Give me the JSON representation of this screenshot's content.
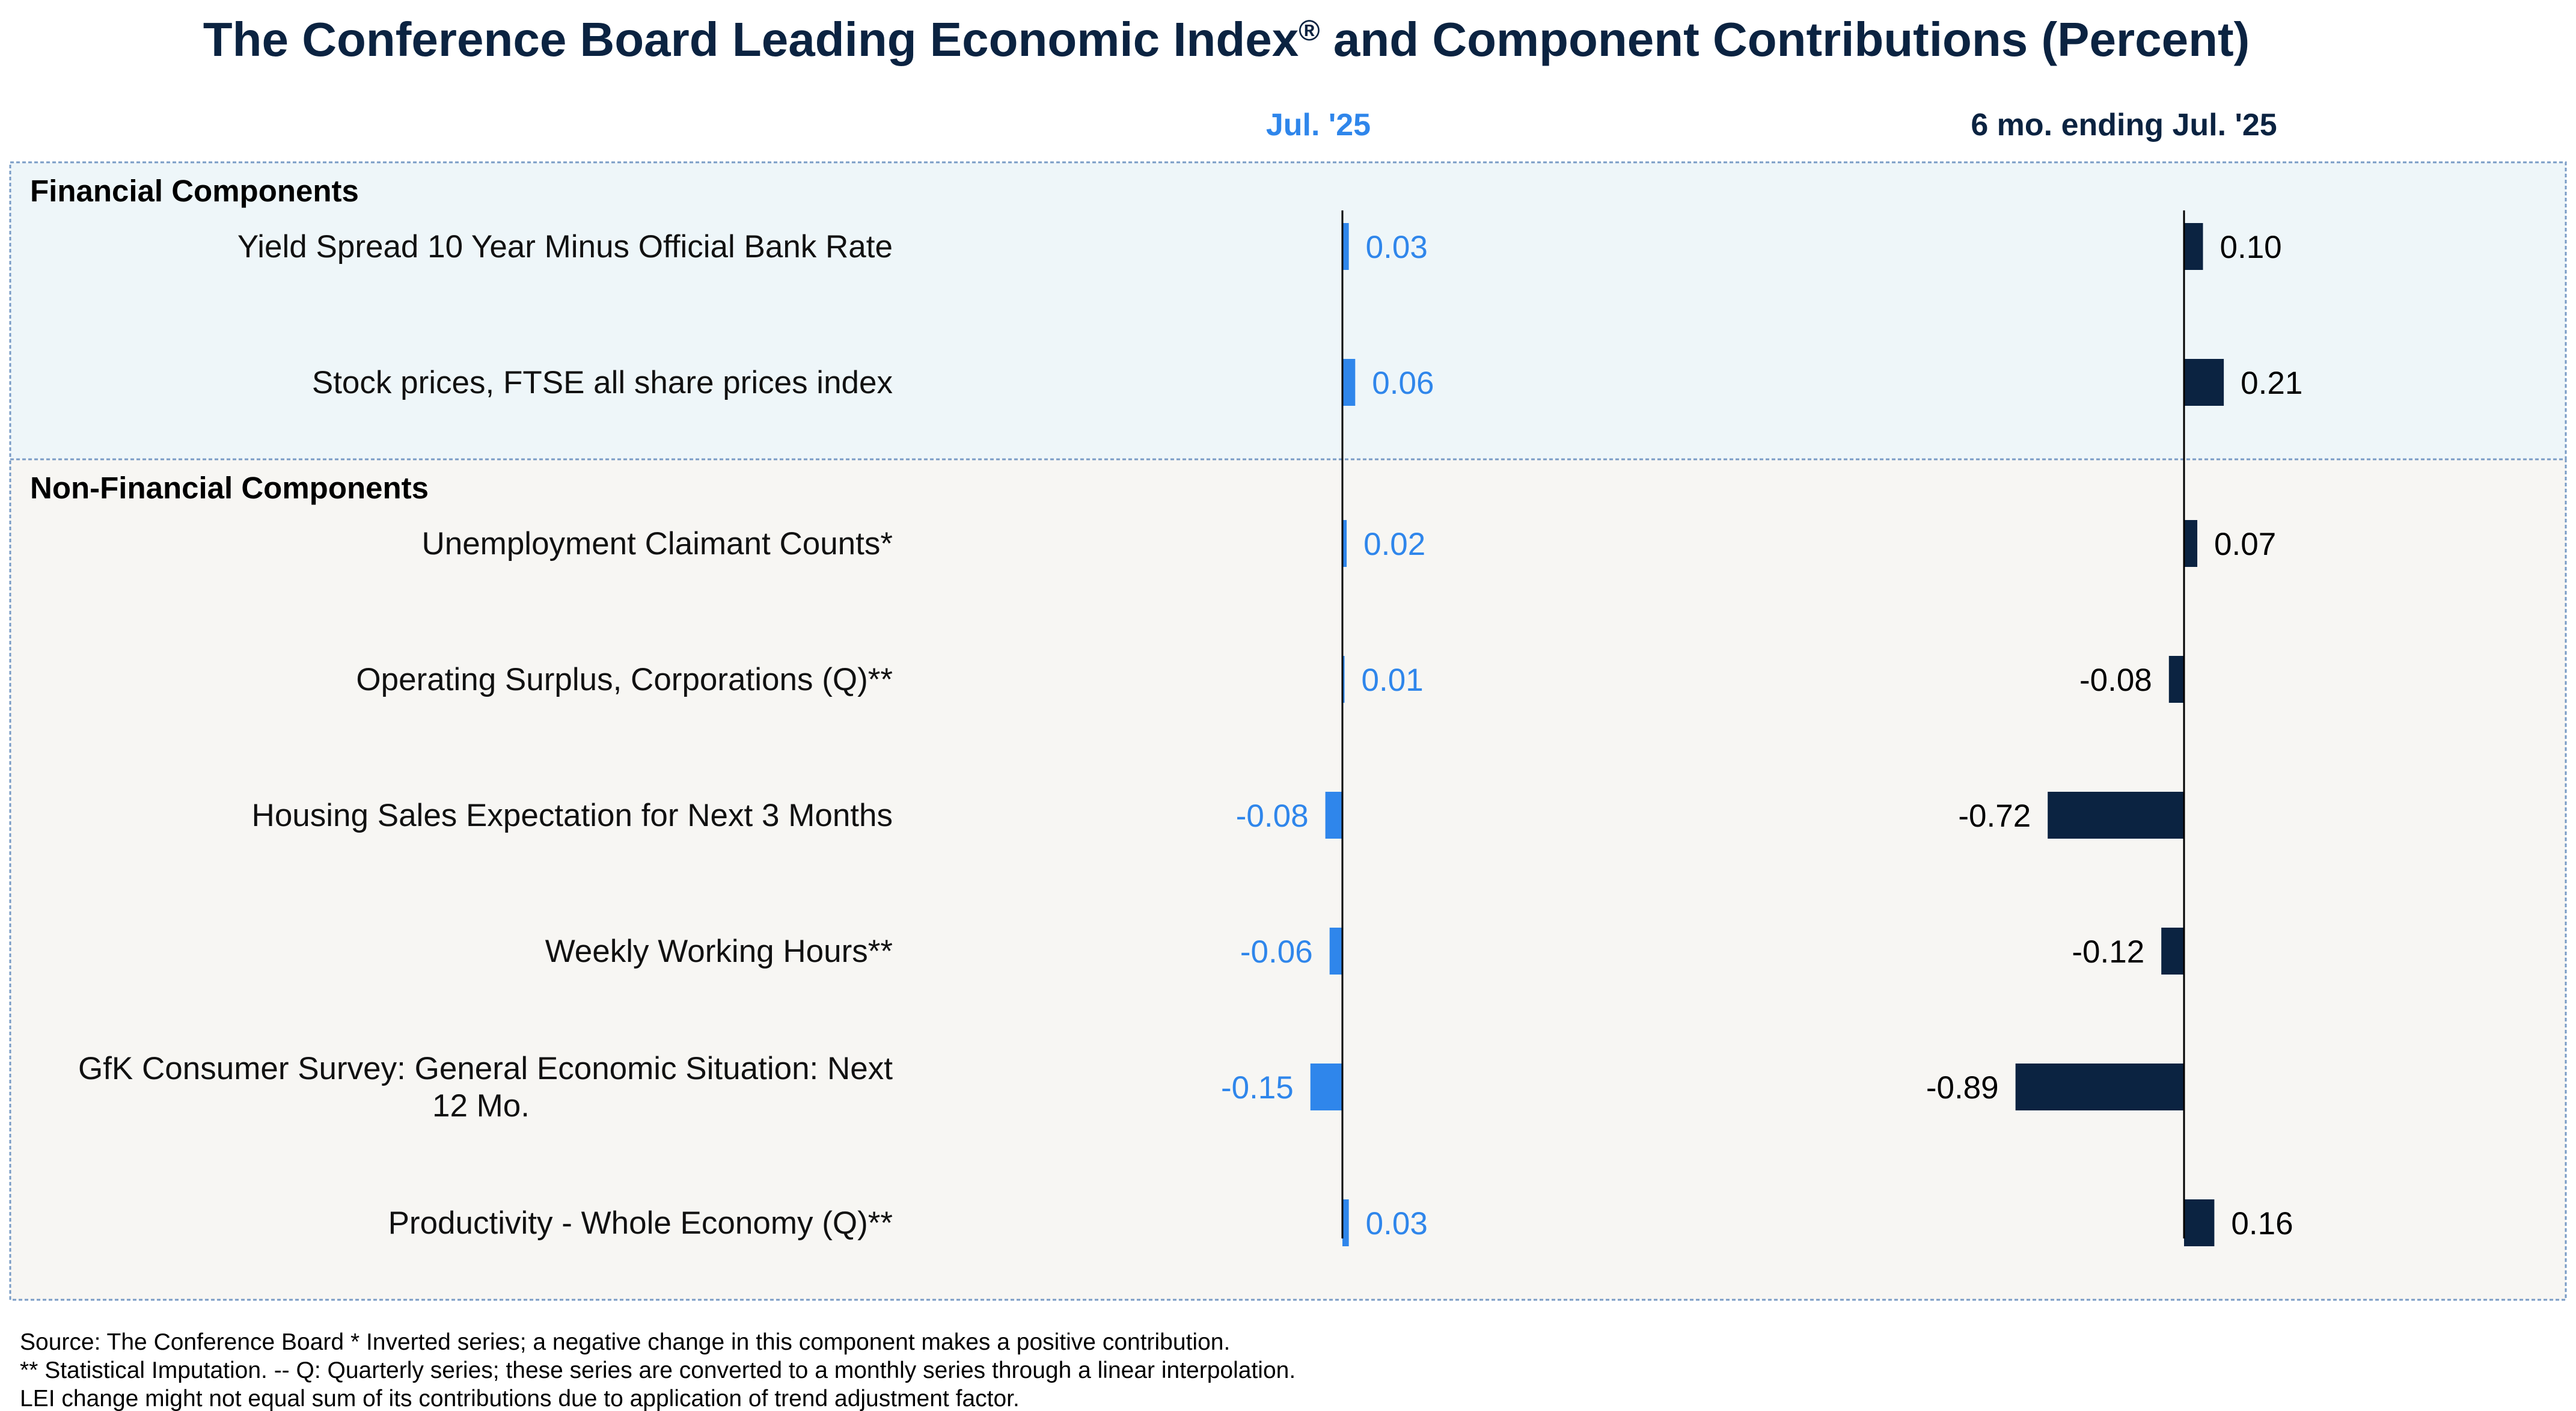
{
  "chart_data": {
    "type": "bar",
    "title": "The Conference Board Leading Economic Index",
    "title_mark": "®",
    "title_suffix": " and Component Contributions (Percent)",
    "orientation": "horizontal",
    "columns": [
      {
        "id": "month",
        "header": "Jul. '25",
        "color": "#2f86eb"
      },
      {
        "id": "six_month",
        "header": "6 mo. ending Jul. '25",
        "color": "#0b2341"
      }
    ],
    "sections": [
      {
        "name": "Financial Components",
        "background": "#eef6f9",
        "rows": [
          {
            "label": [
              "Yield Spread 10 Year Minus Official Bank Rate"
            ],
            "values": [
              0.03,
              0.1
            ],
            "display": [
              "0.03",
              "0.10"
            ]
          },
          {
            "label": [
              "Stock prices, FTSE all share prices index"
            ],
            "values": [
              0.06,
              0.21
            ],
            "display": [
              "0.06",
              "0.21"
            ]
          }
        ]
      },
      {
        "name": "Non-Financial Components",
        "background": "#f7f6f3",
        "rows": [
          {
            "label": [
              "Unemployment Claimant Counts*"
            ],
            "values": [
              0.02,
              0.07
            ],
            "display": [
              "0.02",
              "0.07"
            ]
          },
          {
            "label": [
              "Operating Surplus, Corporations (Q)**"
            ],
            "values": [
              0.01,
              -0.08
            ],
            "display": [
              "0.01",
              "-0.08"
            ]
          },
          {
            "label": [
              "Housing Sales Expectation for Next 3 Months"
            ],
            "values": [
              -0.08,
              -0.72
            ],
            "display": [
              "-0.08",
              "-0.72"
            ]
          },
          {
            "label": [
              "Weekly Working Hours**"
            ],
            "values": [
              -0.06,
              -0.12
            ],
            "display": [
              "-0.06",
              "-0.12"
            ]
          },
          {
            "label": [
              "GfK Consumer Survey: General Economic Situation: Next",
              "12 Mo."
            ],
            "values": [
              -0.15,
              -0.89
            ],
            "display": [
              "-0.15",
              "-0.89"
            ]
          },
          {
            "label": [
              "Productivity - Whole Economy (Q)**"
            ],
            "values": [
              0.03,
              0.16
            ],
            "display": [
              "0.03",
              "0.16"
            ]
          }
        ]
      }
    ],
    "footnotes": [
      "Source: The Conference Board *  Inverted series; a negative change in this component makes a positive contribution.",
      "**  Statistical Imputation. -- Q: Quarterly series; these series are converted to a monthly series through a linear interpolation.",
      "LEI change might not equal sum of its contributions due to application of trend adjustment factor."
    ]
  }
}
